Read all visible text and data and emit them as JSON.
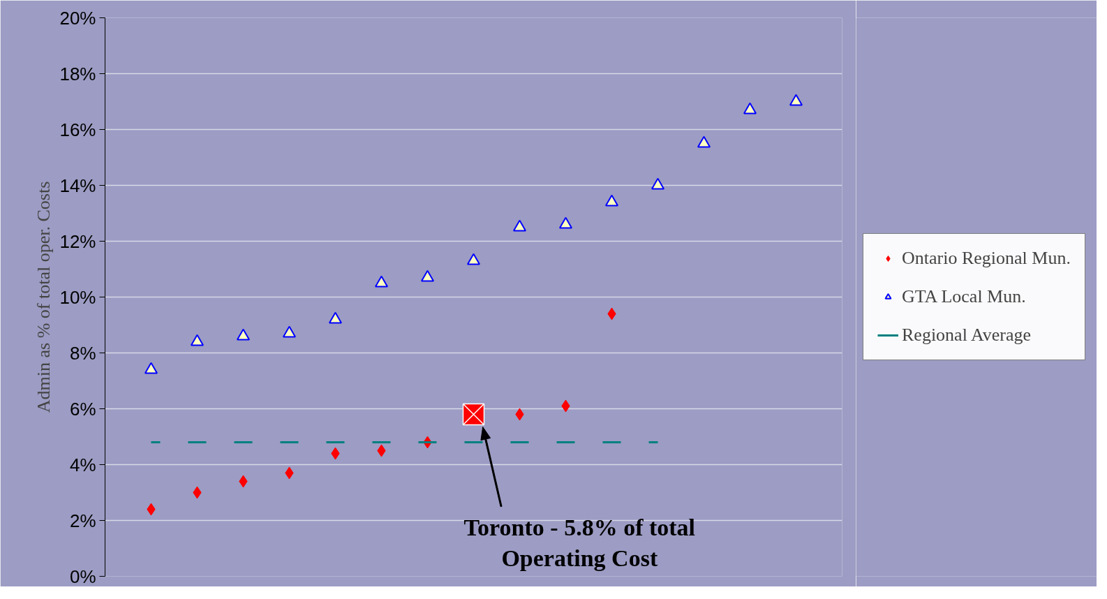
{
  "chart_data": {
    "type": "scatter",
    "ylabel": "Admin as % of total oper. Costs",
    "categories": [
      null,
      null,
      null,
      null,
      null,
      null,
      null,
      null,
      null,
      null,
      null,
      null,
      null,
      null,
      null
    ],
    "series": [
      {
        "name": "Ontario Regional Mun.",
        "color": "#ff0000",
        "marker": "diamond",
        "values": [
          2.4,
          3.0,
          3.4,
          3.7,
          4.4,
          4.5,
          4.8,
          null,
          5.8,
          6.1,
          9.4,
          null,
          null,
          null,
          null
        ]
      },
      {
        "name": "GTA Local Mun.",
        "color": "#0000ff",
        "marker": "triangle",
        "values": [
          7.4,
          8.4,
          8.6,
          8.7,
          9.2,
          10.5,
          10.7,
          11.3,
          12.5,
          12.6,
          13.4,
          14.0,
          15.5,
          16.7,
          17.0
        ]
      },
      {
        "name": "Regional Average",
        "type": "line",
        "line_style": "dashed",
        "color": "#008080",
        "marker": "none",
        "values": [
          4.8,
          4.8,
          4.8,
          4.8,
          4.8,
          4.8,
          4.8,
          4.8,
          4.8,
          4.8,
          4.8,
          4.8,
          null,
          null,
          null
        ]
      },
      {
        "color": "#ff0000",
        "marker": "square",
        "values": [
          null,
          null,
          null,
          null,
          null,
          null,
          null,
          5.8,
          null,
          null,
          null,
          null,
          null,
          null,
          null
        ]
      }
    ],
    "ylim": [
      0,
      20
    ],
    "yticks": [
      {
        "value": 0,
        "label": "0%"
      },
      {
        "value": 2,
        "label": "2%"
      },
      {
        "value": 4,
        "label": "4%"
      },
      {
        "value": 6,
        "label": "6%"
      },
      {
        "value": 8,
        "label": "8%"
      },
      {
        "value": 10,
        "label": "10%"
      },
      {
        "value": 12,
        "label": "12%"
      },
      {
        "value": 14,
        "label": "14%"
      },
      {
        "value": 16,
        "label": "16%"
      },
      {
        "value": 18,
        "label": "18%"
      },
      {
        "value": 20,
        "label": "20%"
      }
    ],
    "annotations": [
      "Toronto - 5.8% of total\nOperating Cost"
    ],
    "grid": "y",
    "legend": "right",
    "tick_labels": "y"
  }
}
